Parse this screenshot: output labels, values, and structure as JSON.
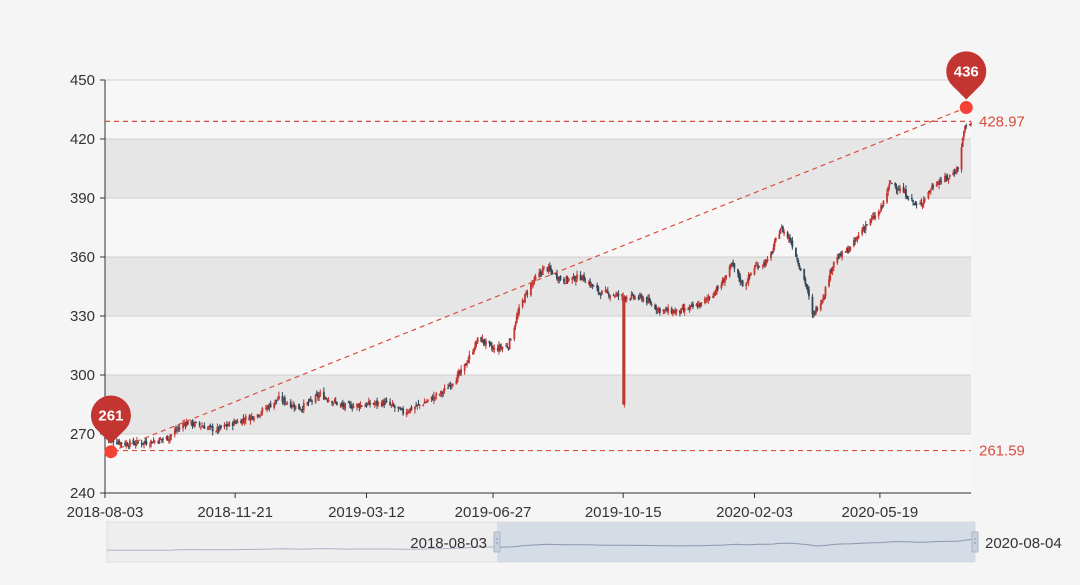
{
  "colors": {
    "background": "#f5f5f5",
    "band": "#e6e6e6",
    "up": "#c23531",
    "down": "#314656",
    "mark_line": "#d94e3f",
    "marker": "#c23531",
    "endpoint": "#f44336",
    "axis_text": "#333333",
    "slider_fill": "#d1d9e4",
    "slider_line": "#a9b4c4"
  },
  "chart_data": {
    "type": "candlestick",
    "title": "",
    "xlabel": "",
    "ylabel": "",
    "ylim": [
      240,
      450
    ],
    "yticks": [
      240,
      270,
      300,
      330,
      360,
      390,
      420,
      450
    ],
    "x_range": [
      "2018-08-03",
      "2020-08-04"
    ],
    "xtick_labels": [
      "2018-08-03",
      "2018-11-21",
      "2019-03-12",
      "2019-06-27",
      "2019-10-15",
      "2020-02-03",
      "2020-05-19"
    ],
    "split_area": true,
    "close_keypoints": [
      [
        "2018-08-03",
        268
      ],
      [
        "2018-08-20",
        265
      ],
      [
        "2018-09-10",
        266
      ],
      [
        "2018-09-25",
        268
      ],
      [
        "2018-10-10",
        276
      ],
      [
        "2018-10-25",
        274
      ],
      [
        "2018-11-05",
        272
      ],
      [
        "2018-11-21",
        276
      ],
      [
        "2018-12-10",
        280
      ],
      [
        "2018-12-28",
        288
      ],
      [
        "2019-01-15",
        283
      ],
      [
        "2019-02-01",
        290
      ],
      [
        "2019-02-20",
        284
      ],
      [
        "2019-03-12",
        285
      ],
      [
        "2019-03-28",
        286
      ],
      [
        "2019-04-12",
        281
      ],
      [
        "2019-04-30",
        286
      ],
      [
        "2019-05-15",
        291
      ],
      [
        "2019-06-01",
        302
      ],
      [
        "2019-06-15",
        319
      ],
      [
        "2019-06-27",
        313
      ],
      [
        "2019-07-10",
        315
      ],
      [
        "2019-07-20",
        335
      ],
      [
        "2019-07-28",
        345
      ],
      [
        "2019-08-10",
        355
      ],
      [
        "2019-08-25",
        348
      ],
      [
        "2019-09-10",
        350
      ],
      [
        "2019-09-25",
        342
      ],
      [
        "2019-10-15",
        340
      ],
      [
        "2019-11-01",
        339
      ],
      [
        "2019-11-15",
        333
      ],
      [
        "2019-12-01",
        332
      ],
      [
        "2019-12-20",
        336
      ],
      [
        "2020-01-05",
        345
      ],
      [
        "2020-01-15",
        356
      ],
      [
        "2020-01-25",
        345
      ],
      [
        "2020-02-03",
        355
      ],
      [
        "2020-02-15",
        358
      ],
      [
        "2020-02-25",
        375
      ],
      [
        "2020-03-05",
        368
      ],
      [
        "2020-03-18",
        345
      ],
      [
        "2020-03-23",
        330
      ],
      [
        "2020-04-01",
        340
      ],
      [
        "2020-04-10",
        358
      ],
      [
        "2020-04-25",
        365
      ],
      [
        "2020-05-05",
        375
      ],
      [
        "2020-05-19",
        383
      ],
      [
        "2020-05-28",
        398
      ],
      [
        "2020-06-10",
        392
      ],
      [
        "2020-06-20",
        385
      ],
      [
        "2020-07-05",
        398
      ],
      [
        "2020-07-15",
        400
      ],
      [
        "2020-07-25",
        406
      ],
      [
        "2020-07-29",
        425
      ],
      [
        "2020-08-04",
        428
      ]
    ],
    "spike": {
      "date": "2019-10-15",
      "open": 340,
      "close": 285,
      "high": 342,
      "low": 285
    },
    "mark_points": [
      {
        "label": "261",
        "date": "2018-08-08",
        "value": 261
      },
      {
        "label": "436",
        "date": "2020-07-31",
        "value": 436
      }
    ],
    "mark_lines": [
      {
        "label": "428.97",
        "value": 428.97
      },
      {
        "label": "261.59",
        "value": 261.59
      }
    ],
    "trend_line": {
      "from": [
        "2018-08-08",
        261
      ],
      "to": [
        "2020-07-31",
        436
      ]
    },
    "data_zoom": {
      "start_label": "2018-08-03",
      "end_label": "2020-08-04"
    }
  }
}
